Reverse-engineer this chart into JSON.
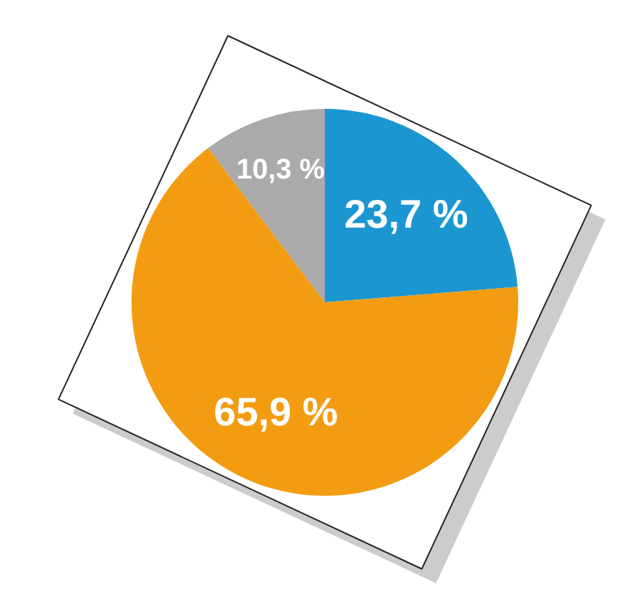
{
  "chart_data": {
    "type": "pie",
    "categories": [
      null,
      null,
      null
    ],
    "values": [
      23.7,
      65.9,
      10.3
    ],
    "colors": [
      "#1b96d1",
      "#f39c12",
      "#aaaaaa"
    ],
    "value_labels": [
      "23,7 %",
      "65,9 %",
      "10,3 %"
    ]
  }
}
